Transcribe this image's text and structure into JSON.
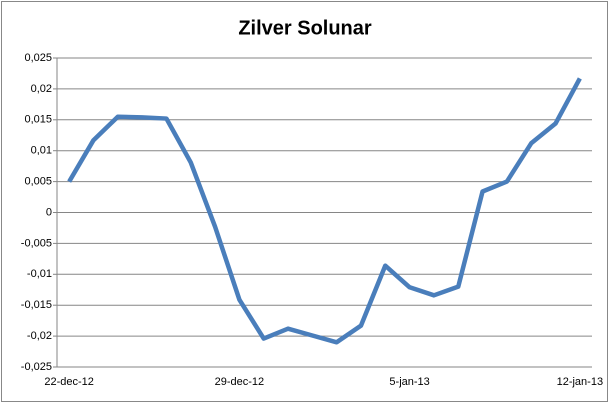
{
  "chart_data": {
    "type": "line",
    "title": "Zilver Solunar",
    "categories": [
      "22-dec-12",
      null,
      null,
      null,
      null,
      null,
      null,
      "29-dec-12",
      null,
      null,
      null,
      null,
      null,
      null,
      "5-jan-13",
      null,
      null,
      null,
      null,
      null,
      null,
      "12-jan-13"
    ],
    "series": [
      {
        "name": "Zilver Solunar",
        "color": "#4a7ebb",
        "values": [
          0.005,
          0.0117,
          0.0155,
          0.0154,
          0.0152,
          0.0081,
          -0.0023,
          -0.0141,
          -0.0204,
          -0.0188,
          -0.0199,
          -0.021,
          -0.0183,
          -0.0086,
          -0.0121,
          -0.0134,
          -0.012,
          0.0034,
          0.005,
          0.0112,
          0.0144,
          0.0217
        ]
      }
    ],
    "ylim": [
      -0.025,
      0.025
    ],
    "yticks": [
      {
        "value": -0.025,
        "label": "-0,025"
      },
      {
        "value": -0.02,
        "label": "-0,02"
      },
      {
        "value": -0.015,
        "label": "-0,015"
      },
      {
        "value": -0.01,
        "label": "-0,01"
      },
      {
        "value": -0.005,
        "label": "-0,005"
      },
      0,
      {
        "value": 0.005,
        "label": "0,005"
      },
      {
        "value": 0.01,
        "label": "0,01"
      },
      {
        "value": 0.015,
        "label": "0,015"
      },
      {
        "value": 0.02,
        "label": "0,02"
      },
      {
        "value": 0.025,
        "label": "0,025"
      }
    ],
    "grid": true
  }
}
